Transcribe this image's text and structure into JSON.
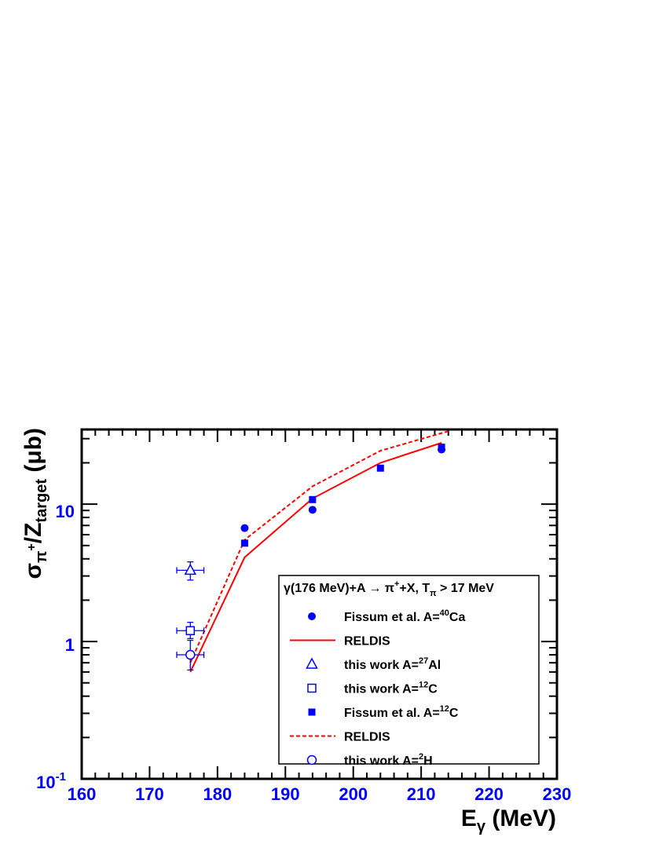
{
  "chart_data": {
    "type": "scatter",
    "x_axis": {
      "label_main": "E",
      "label_sub": "γ",
      "label_unit": " (MeV)",
      "range": [
        160,
        230
      ],
      "ticks": [
        160,
        170,
        180,
        190,
        200,
        210,
        220,
        230
      ],
      "scale": "linear"
    },
    "y_axis": {
      "label_sigma": "σ",
      "label_pi": "π",
      "label_plus": "+",
      "label_slash": "/Z",
      "label_target": "target",
      "label_unit": " (μb)",
      "range": [
        0.1,
        35
      ],
      "scale": "log",
      "ticks": [
        0.1,
        1,
        10
      ],
      "tick_labels": {
        "t1": "10",
        "t1_exp": "-1",
        "t2": "1",
        "t3": "10"
      }
    },
    "legend_title": {
      "part1": "γ(176 MeV)+A → π",
      "part1_sup": "+",
      "part2": "+X, T",
      "part2_sub": "π",
      "part3": " > 17 MeV"
    },
    "legend_entries": [
      {
        "key": "fissum_ca",
        "text": "Fissum et al. A=",
        "sup": "40",
        "tail": "Ca",
        "marker": "filled-circle"
      },
      {
        "key": "reldis_solid",
        "text": "RELDIS",
        "sup": "",
        "tail": "",
        "marker": "solid-line"
      },
      {
        "key": "this_al",
        "text": "this work A=",
        "sup": "27",
        "tail": "Al",
        "marker": "open-triangle"
      },
      {
        "key": "this_c",
        "text": "this work A=",
        "sup": "12",
        "tail": "C",
        "marker": "open-square"
      },
      {
        "key": "fissum_c",
        "text": "Fissum et al. A=",
        "sup": "12",
        "tail": "C",
        "marker": "filled-square"
      },
      {
        "key": "reldis_dashed",
        "text": "RELDIS",
        "sup": "",
        "tail": "",
        "marker": "dashed-line"
      },
      {
        "key": "this_h",
        "text": "this work A=",
        "sup": "2",
        "tail": "H",
        "marker": "open-circle"
      }
    ],
    "series": [
      {
        "key": "fissum_ca",
        "marker": "filled-circle",
        "points": [
          {
            "x": 184,
            "y": 6.7
          },
          {
            "x": 194,
            "y": 9.1
          },
          {
            "x": 213,
            "y": 25
          }
        ]
      },
      {
        "key": "fissum_c",
        "marker": "filled-square",
        "points": [
          {
            "x": 184,
            "y": 5.2
          },
          {
            "x": 194,
            "y": 10.8
          },
          {
            "x": 204,
            "y": 18.3
          },
          {
            "x": 213,
            "y": 26
          }
        ]
      },
      {
        "key": "this_al",
        "marker": "open-triangle",
        "points": [
          {
            "x": 176,
            "y": 3.3,
            "xerr": 2,
            "ylo": 2.8,
            "yhi": 3.8
          }
        ]
      },
      {
        "key": "this_c",
        "marker": "open-square",
        "points": [
          {
            "x": 176,
            "y": 1.2,
            "xerr": 2,
            "ylo": 1.05,
            "yhi": 1.38
          }
        ]
      },
      {
        "key": "this_h",
        "marker": "open-circle",
        "points": [
          {
            "x": 176,
            "y": 0.8,
            "xerr": 2,
            "ylo": 0.62,
            "yhi": 1.02
          }
        ]
      },
      {
        "key": "reldis_solid",
        "marker": "solid-line",
        "points": [
          {
            "x": 176,
            "y": 0.6
          },
          {
            "x": 184,
            "y": 4.1
          },
          {
            "x": 194,
            "y": 11
          },
          {
            "x": 204,
            "y": 20
          },
          {
            "x": 213,
            "y": 28
          }
        ]
      },
      {
        "key": "reldis_dashed",
        "marker": "dashed-line",
        "points": [
          {
            "x": 176,
            "y": 0.7
          },
          {
            "x": 184,
            "y": 5.5
          },
          {
            "x": 194,
            "y": 13.5
          },
          {
            "x": 204,
            "y": 24.5
          },
          {
            "x": 214,
            "y": 34
          }
        ]
      }
    ],
    "colors": {
      "points": "#0000ff",
      "lines": "#ff0000",
      "ticks_text": "#0000ff",
      "frame": "#000000"
    },
    "grid": false,
    "legend_placement": "bottom-right"
  }
}
